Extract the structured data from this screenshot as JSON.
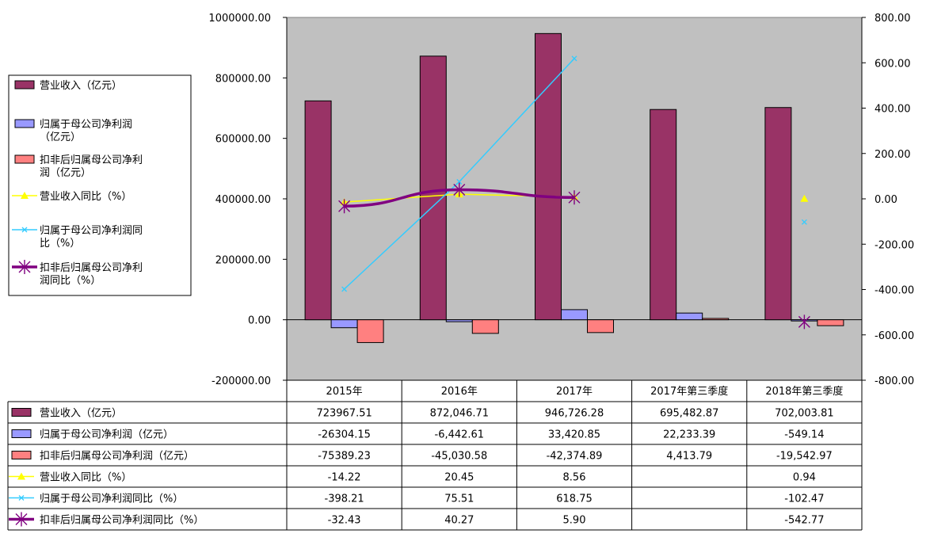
{
  "chart_data": {
    "type": "bar",
    "categories": [
      "2015年",
      "2016年",
      "2017年",
      "2017年第三季度",
      "2018年第三季度"
    ],
    "y_left": {
      "ylim": [
        -200000,
        1000000
      ],
      "ticks": [
        1000000,
        800000,
        600000,
        400000,
        200000,
        0,
        -200000
      ],
      "tick_labels": [
        "1000000.00",
        "800000.00",
        "600000.00",
        "400000.00",
        "200000.00",
        "0.00",
        "-200000.00"
      ]
    },
    "y_right": {
      "ylim": [
        -800,
        800
      ],
      "ticks": [
        800,
        600,
        400,
        200,
        0,
        -200,
        -400,
        -600,
        -800
      ],
      "tick_labels": [
        "800.00",
        "600.00",
        "400.00",
        "200.00",
        "0.00",
        "-200.00",
        "-400.00",
        "-600.00",
        "-800.00"
      ]
    },
    "grid": false,
    "legend_position": "left",
    "series": [
      {
        "name": "营业收入（亿元）",
        "kind": "bar",
        "axis": "left",
        "color": "#993366",
        "values": [
          723967.51,
          872046.71,
          946726.28,
          695482.87,
          702003.81
        ],
        "labels": [
          "723967.51",
          "872,046.71",
          "946,726.28",
          "695,482.87",
          "702,003.81"
        ]
      },
      {
        "name": "归属于母公司净利润（亿元）",
        "kind": "bar",
        "axis": "left",
        "color": "#9999ff",
        "values": [
          -26304.15,
          -6442.61,
          33420.85,
          22233.39,
          -549.14
        ],
        "labels": [
          "-26304.15",
          "-6,442.61",
          "33,420.85",
          "22,233.39",
          "-549.14"
        ]
      },
      {
        "name": "扣非后归属母公司净利润（亿元）",
        "kind": "bar",
        "axis": "left",
        "color": "#ff8080",
        "values": [
          -75389.23,
          -45030.58,
          -42374.89,
          4413.79,
          -19542.97
        ],
        "labels": [
          "-75389.23",
          "-45,030.58",
          "-42,374.89",
          "4,413.79",
          "-19,542.97"
        ]
      },
      {
        "name": "营业收入同比（%）",
        "kind": "line",
        "axis": "right",
        "color": "#ffff00",
        "values": [
          -14.22,
          20.45,
          8.56,
          null,
          0.94
        ],
        "labels": [
          "-14.22",
          "20.45",
          "8.56",
          "",
          "0.94"
        ]
      },
      {
        "name": "归属于母公司净利润同比（%）",
        "kind": "line",
        "axis": "right",
        "color": "#33ccff",
        "values": [
          -398.21,
          75.51,
          618.75,
          null,
          -102.47
        ],
        "labels": [
          "-398.21",
          "75.51",
          "618.75",
          "",
          "-102.47"
        ]
      },
      {
        "name": "扣非后归属母公司净利润同比（%）",
        "kind": "line",
        "axis": "right",
        "color": "#800080",
        "values": [
          -32.43,
          40.27,
          5.9,
          null,
          -542.77
        ],
        "labels": [
          "-32.43",
          "40.27",
          "5.90",
          "",
          "-542.77"
        ]
      }
    ],
    "legend_lines": [
      [
        "营业收入（亿元）"
      ],
      [
        "归属于母公司净利润",
        "（亿元）"
      ],
      [
        "扣非后归属母公司净利",
        "润（亿元）"
      ],
      [
        "营业收入同比（%）"
      ],
      [
        "归属于母公司净利润同",
        "比（%）"
      ],
      [
        "扣非后归属母公司净利",
        "润同比（%）"
      ]
    ]
  }
}
